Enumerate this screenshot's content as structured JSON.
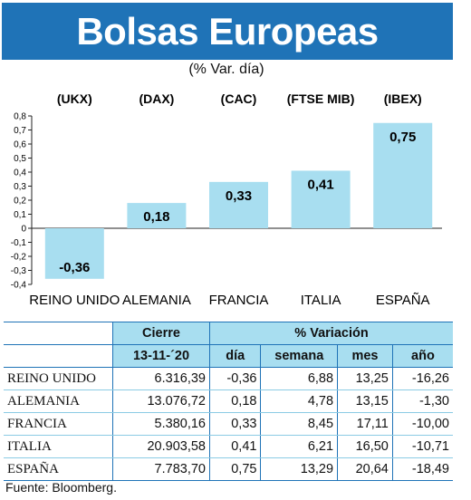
{
  "header": {
    "title": "Bolsas Europeas",
    "subtitle": "(% Var. día)"
  },
  "chart_data": {
    "type": "bar",
    "categories": [
      "REINO UNIDO",
      "ALEMANIA",
      "FRANCIA",
      "ITALIA",
      "ESPAÑA"
    ],
    "tickers": [
      "(UKX)",
      "(DAX)",
      "(CAC)",
      "(FTSE MIB)",
      "(IBEX)"
    ],
    "values": [
      -0.36,
      0.18,
      0.33,
      0.41,
      0.75
    ],
    "value_labels": [
      "-0,36",
      "0,18",
      "0,33",
      "0,41",
      "0,75"
    ],
    "ylim": [
      -0.4,
      0.8
    ],
    "yticks": [
      -0.4,
      -0.3,
      -0.2,
      -0.1,
      0,
      0.1,
      0.2,
      0.3,
      0.4,
      0.5,
      0.6,
      0.7,
      0.8
    ],
    "ytick_labels": [
      "-0,4",
      "-0,3",
      "-0,2",
      "-0,1",
      "0",
      "0,1",
      "0,2",
      "0,3",
      "0,4",
      "0,5",
      "0,6",
      "0,7",
      "0,8"
    ],
    "grid": false,
    "bar_color": "#a8def0"
  },
  "table": {
    "group_headers": {
      "close": "Cierre",
      "variation": "% Variación"
    },
    "sub_headers": {
      "date": "13-11-´20",
      "day": "día",
      "week": "semana",
      "month": "mes",
      "year": "año"
    },
    "rows": [
      {
        "name": "REINO UNIDO",
        "close": "6.316,39",
        "day": "-0,36",
        "week": "6,88",
        "month": "13,25",
        "year": "-16,26"
      },
      {
        "name": "ALEMANIA",
        "close": "13.076,72",
        "day": "0,18",
        "week": "4,78",
        "month": "13,15",
        "year": "-1,30"
      },
      {
        "name": "FRANCIA",
        "close": "5.380,16",
        "day": "0,33",
        "week": "8,45",
        "month": "17,11",
        "year": "-10,00"
      },
      {
        "name": "ITALIA",
        "close": "20.903,58",
        "day": "0,41",
        "week": "6,21",
        "month": "16,50",
        "year": "-10,71"
      },
      {
        "name": "ESPAÑA",
        "close": "7.783,70",
        "day": "0,75",
        "week": "13,29",
        "month": "20,64",
        "year": "-18,49"
      }
    ]
  },
  "footer": {
    "source": "Fuente: Bloomberg."
  },
  "colors": {
    "title_bg": "#1f73b7",
    "bar": "#a8def0",
    "table_header": "#a8def0"
  }
}
